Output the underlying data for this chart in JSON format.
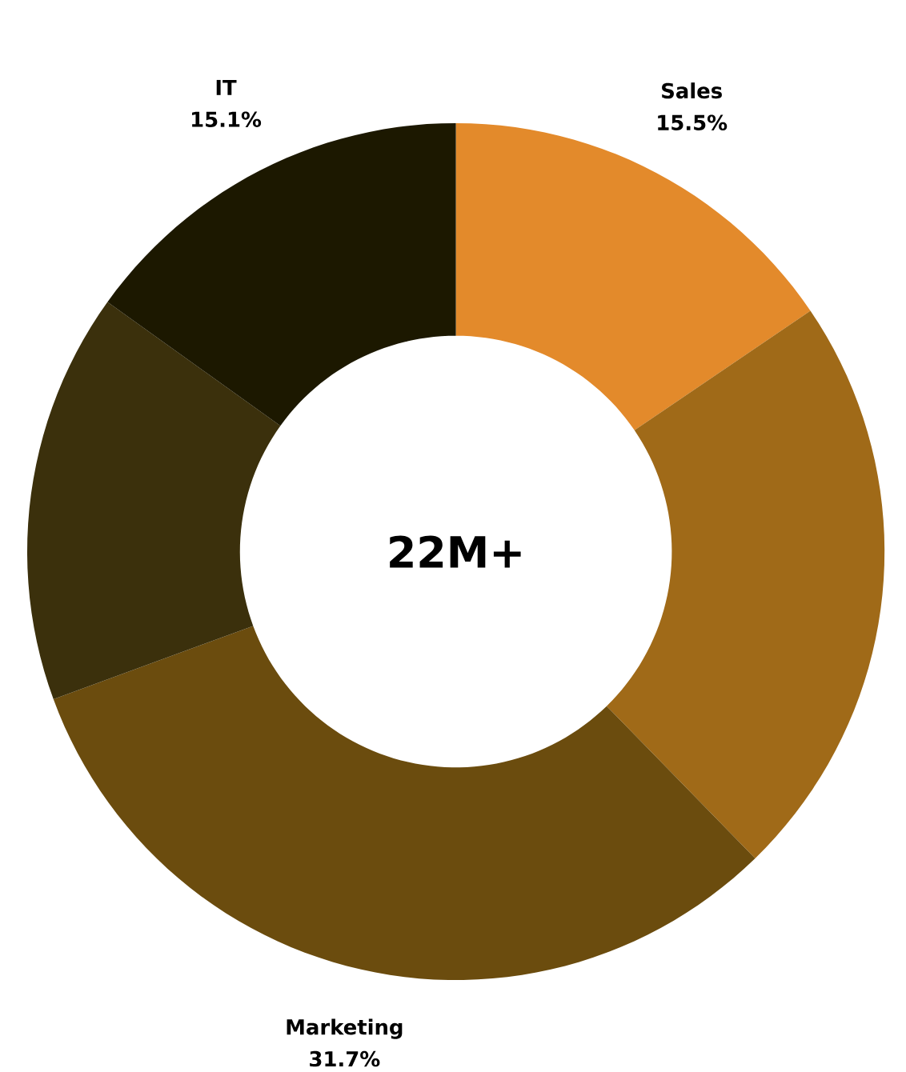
{
  "chart_data": {
    "type": "donut",
    "categories": [
      "Sales",
      null,
      "Marketing",
      null,
      "IT"
    ],
    "values": [
      15.5,
      22.2,
      31.7,
      15.5,
      15.1
    ],
    "value_labels": [
      "15.5%",
      null,
      "31.7%",
      null,
      "15.1%"
    ],
    "colors": [
      "#e38a2b",
      "#a06a18",
      "#6b4c0e",
      "#3b300c",
      "#1c1800"
    ],
    "annotations": [
      "22M+"
    ]
  }
}
